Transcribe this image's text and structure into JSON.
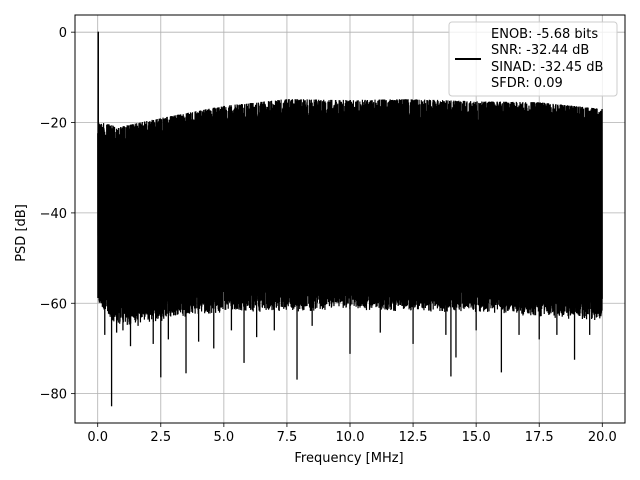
{
  "chart_data": {
    "type": "line",
    "title": "",
    "xlabel": "Frequency [MHz]",
    "ylabel": "PSD [dB]",
    "xlim": [
      -0.9,
      20.9
    ],
    "ylim": [
      -86.5,
      3.8
    ],
    "grid": true,
    "legend_position": "top-right",
    "x_ticks": [
      0.0,
      2.5,
      5.0,
      7.5,
      10.0,
      12.5,
      15.0,
      17.5,
      20.0
    ],
    "x_tick_labels": [
      "0.0",
      "2.5",
      "5.0",
      "7.5",
      "10.0",
      "12.5",
      "15.0",
      "17.5",
      "20.0"
    ],
    "y_ticks": [
      0,
      -20,
      -40,
      -60,
      -80
    ],
    "y_tick_labels": [
      "0",
      "−20",
      "−40",
      "−60",
      "−80"
    ],
    "series": [
      {
        "color": "#000000",
        "legend_lines": [
          "ENOB: -5.68 bits",
          "SNR: -32.44 dB",
          "SINAD: -32.45 dB",
          "SFDR: 0.09"
        ],
        "peak": {
          "x": 0.02,
          "y": 0.0
        },
        "envelope": {
          "x": [
            0.0,
            0.5,
            1.0,
            2.5,
            5.0,
            7.5,
            10.0,
            12.5,
            15.0,
            17.5,
            20.0
          ],
          "y_upper": [
            -19.8,
            -20.5,
            -20.8,
            -19.0,
            -16.3,
            -14.8,
            -15.0,
            -14.8,
            -15.3,
            -15.5,
            -17.0
          ],
          "y_lower": [
            -58.0,
            -62.0,
            -63.0,
            -62.0,
            -60.0,
            -60.0,
            -59.5,
            -60.0,
            -60.0,
            -61.0,
            -62.0
          ]
        },
        "deep_dips": [
          {
            "x": 0.28,
            "y": -67.0
          },
          {
            "x": 0.55,
            "y": -82.8
          },
          {
            "x": 0.75,
            "y": -66.5
          },
          {
            "x": 1.0,
            "y": -66.0
          },
          {
            "x": 1.3,
            "y": -69.5
          },
          {
            "x": 1.6,
            "y": -65.0
          },
          {
            "x": 2.2,
            "y": -69.0
          },
          {
            "x": 2.5,
            "y": -76.4
          },
          {
            "x": 2.8,
            "y": -68.0
          },
          {
            "x": 3.5,
            "y": -75.5
          },
          {
            "x": 4.0,
            "y": -68.5
          },
          {
            "x": 4.6,
            "y": -70.0
          },
          {
            "x": 5.3,
            "y": -66.0
          },
          {
            "x": 5.8,
            "y": -73.2
          },
          {
            "x": 6.3,
            "y": -67.5
          },
          {
            "x": 7.0,
            "y": -66.0
          },
          {
            "x": 7.9,
            "y": -76.9
          },
          {
            "x": 8.5,
            "y": -65.0
          },
          {
            "x": 10.0,
            "y": -71.2
          },
          {
            "x": 11.2,
            "y": -66.5
          },
          {
            "x": 12.5,
            "y": -69.0
          },
          {
            "x": 13.8,
            "y": -67.0
          },
          {
            "x": 14.0,
            "y": -76.2
          },
          {
            "x": 14.2,
            "y": -72.0
          },
          {
            "x": 15.0,
            "y": -66.0
          },
          {
            "x": 16.0,
            "y": -75.3
          },
          {
            "x": 16.7,
            "y": -67.0
          },
          {
            "x": 17.5,
            "y": -68.0
          },
          {
            "x": 18.2,
            "y": -67.0
          },
          {
            "x": 18.9,
            "y": -72.5
          },
          {
            "x": 19.5,
            "y": -67.0
          }
        ]
      }
    ]
  }
}
